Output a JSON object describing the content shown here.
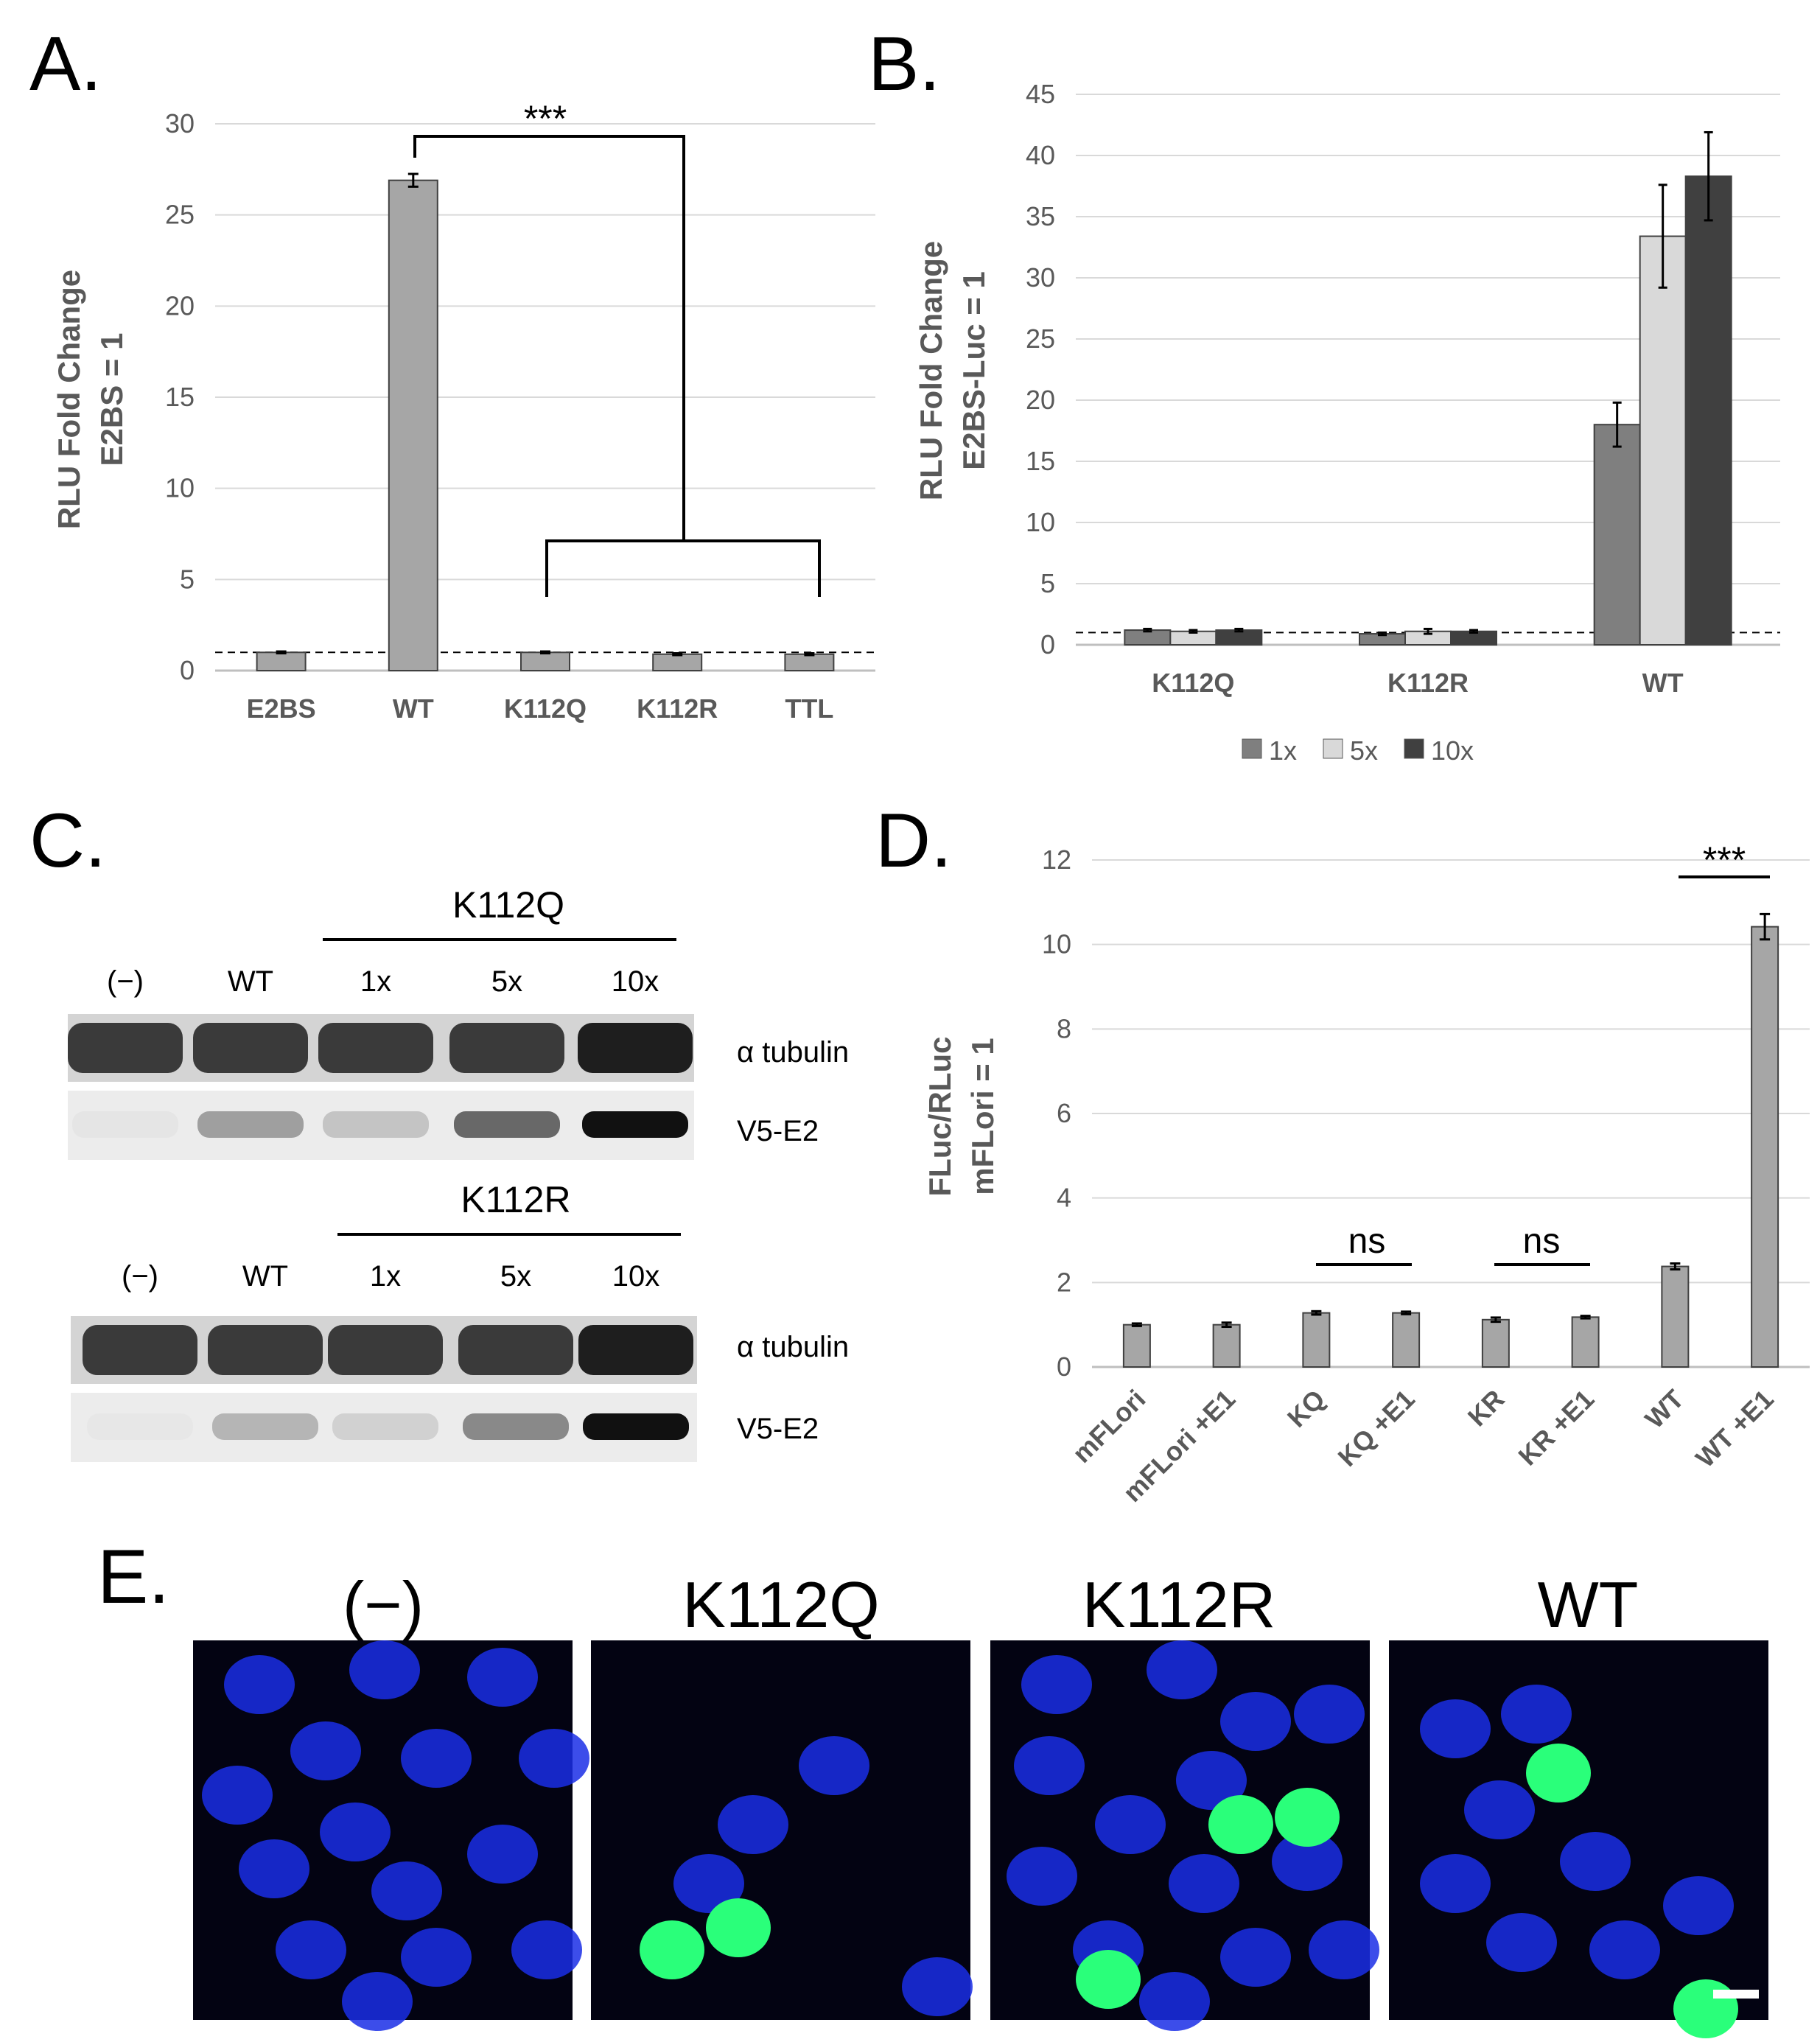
{
  "panels": {
    "A": {
      "letter": "A."
    },
    "B": {
      "letter": "B."
    },
    "C": {
      "letter": "C."
    },
    "D": {
      "letter": "D."
    },
    "E": {
      "letter": "E."
    }
  },
  "chart_data": [
    {
      "panel": "A",
      "type": "bar",
      "categories": [
        "E2BS",
        "WT",
        "K112Q",
        "K112R",
        "TTL"
      ],
      "values": [
        1.0,
        26.9,
        1.0,
        0.9,
        0.9
      ],
      "errors": [
        0.05,
        0.35,
        0.05,
        0.05,
        0.05
      ],
      "ylabel_lines": [
        "RLU Fold Change",
        "E2BS = 1"
      ],
      "ylim": [
        0,
        30
      ],
      "yticks": [
        0,
        5,
        10,
        15,
        20,
        25,
        30
      ],
      "reference_line": 1,
      "grid": true,
      "bar_color": "#a6a6a6",
      "significance": "***"
    },
    {
      "panel": "B",
      "type": "bar",
      "categories": [
        "K112Q",
        "K112R",
        "WT"
      ],
      "series": [
        {
          "name": "1x",
          "values": [
            1.2,
            0.9,
            18.0
          ],
          "errors": [
            0.1,
            0.1,
            1.8
          ],
          "color": "#7f7f7f"
        },
        {
          "name": "5x",
          "values": [
            1.1,
            1.1,
            33.4
          ],
          "errors": [
            0.1,
            0.2,
            4.2
          ],
          "color": "#d9d9d9"
        },
        {
          "name": "10x",
          "values": [
            1.2,
            1.1,
            38.3
          ],
          "errors": [
            0.1,
            0.1,
            3.6
          ],
          "color": "#404040"
        }
      ],
      "ylabel_lines": [
        "RLU Fold Change",
        "E2BS-Luc = 1"
      ],
      "ylim": [
        0,
        45
      ],
      "yticks": [
        0,
        5,
        10,
        15,
        20,
        25,
        30,
        35,
        40,
        45
      ],
      "reference_line": 1,
      "grid": true,
      "legend_position": "bottom"
    },
    {
      "panel": "D",
      "type": "bar",
      "categories": [
        "mFLori",
        "mFLori +E1",
        "KQ",
        "KQ +E1",
        "KR",
        "KR +E1",
        "WT",
        "WT +E1"
      ],
      "values": [
        1.0,
        1.0,
        1.28,
        1.28,
        1.12,
        1.18,
        2.38,
        10.42
      ],
      "errors": [
        0.03,
        0.05,
        0.04,
        0.03,
        0.05,
        0.03,
        0.07,
        0.3
      ],
      "ylabel_lines": [
        "FLuc/RLuc",
        "mFLori = 1"
      ],
      "ylim": [
        0,
        12
      ],
      "yticks": [
        0,
        2,
        4,
        6,
        8,
        10,
        12
      ],
      "grid": true,
      "bar_color": "#a6a6a6",
      "annotations": [
        "ns",
        "ns",
        "***"
      ]
    }
  ],
  "blots": {
    "top": {
      "group": "K112Q",
      "lanes": [
        "(−)",
        "WT",
        "1x",
        "5x",
        "10x"
      ],
      "rows": [
        "α tubulin",
        "V5-E2"
      ],
      "v5_intensity": [
        0.03,
        0.35,
        0.18,
        0.6,
        1.0
      ]
    },
    "bottom": {
      "group": "K112R",
      "lanes": [
        "(−)",
        "WT",
        "1x",
        "5x",
        "10x"
      ],
      "rows": [
        "α tubulin",
        "V5-E2"
      ],
      "v5_intensity": [
        0.02,
        0.25,
        0.12,
        0.45,
        1.0
      ]
    }
  },
  "microscopy": {
    "conditions": [
      "(−)",
      "K112Q",
      "K112R",
      "WT"
    ],
    "nucleus_color": "#1a2ee6",
    "gfp_color": "#2aff7a"
  }
}
